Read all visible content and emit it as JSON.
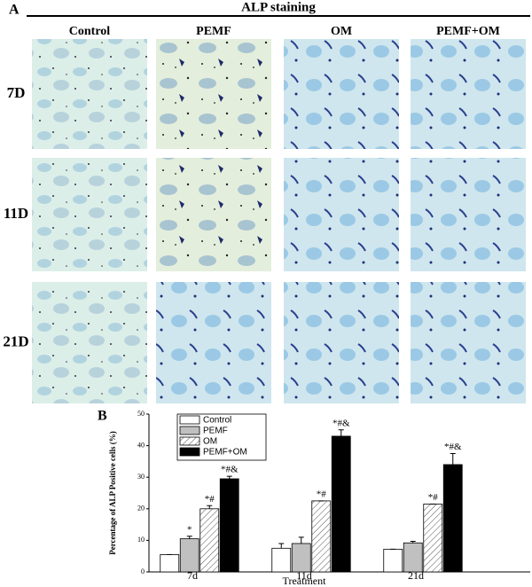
{
  "panel_a": {
    "label": "A",
    "title": "ALP staining",
    "columns": [
      "Control",
      "PEMF",
      "OM",
      "PEMF+OM"
    ],
    "rows": [
      "7D",
      "11D",
      "21D"
    ]
  },
  "chart_data": {
    "type": "bar",
    "panel_label": "B",
    "y_label": "Percentage of ALP Positive cells (%)",
    "x_label": "Treatment",
    "categories": [
      "7d",
      "11d",
      "21d"
    ],
    "series": [
      {
        "name": "Control",
        "color": "#ffffff",
        "pattern": "solid",
        "values": [
          5.5,
          7.5,
          7.2
        ],
        "errors": [
          0,
          1.5,
          0
        ],
        "annotations": [
          null,
          null,
          null
        ]
      },
      {
        "name": "PEMF",
        "color": "#c0c0c0",
        "pattern": "solid",
        "values": [
          10.5,
          9,
          9.2
        ],
        "errors": [
          0.8,
          2,
          0.5
        ],
        "annotations": [
          "*",
          null,
          null
        ]
      },
      {
        "name": "OM",
        "color": "#ffffff",
        "pattern": "hatch",
        "values": [
          20,
          22.5,
          21.5
        ],
        "errors": [
          1,
          0,
          0
        ],
        "annotations": [
          "*#",
          "*#",
          "*#"
        ]
      },
      {
        "name": "PEMF+OM",
        "color": "#000000",
        "pattern": "solid",
        "values": [
          29.5,
          43,
          34
        ],
        "errors": [
          0.8,
          2,
          3.5
        ],
        "annotations": [
          "*#&",
          "*#&",
          "*#&"
        ]
      }
    ],
    "ylim": [
      0,
      50
    ],
    "yticks": [
      0,
      10,
      20,
      30,
      40,
      50
    ],
    "legend": "upper-left"
  }
}
